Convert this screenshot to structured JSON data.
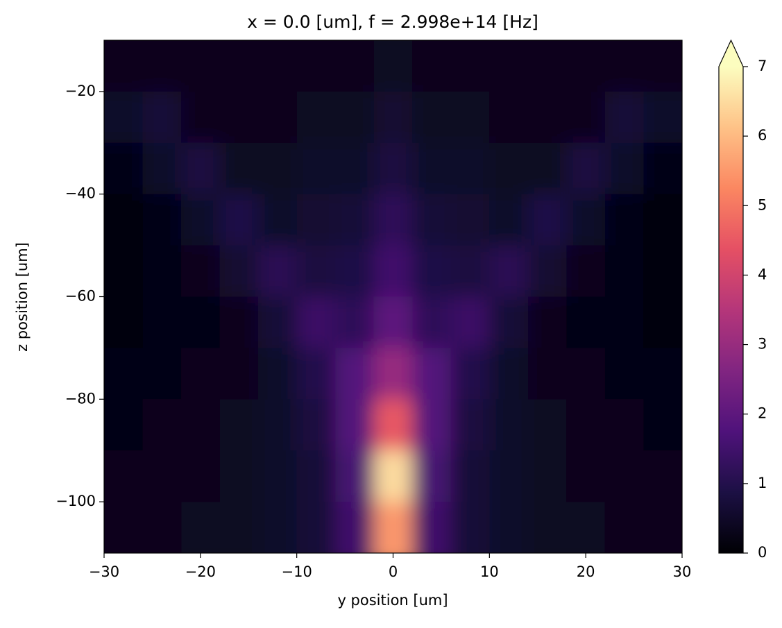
{
  "chart_data": {
    "type": "heatmap",
    "title": "x = 0.0 [um], f = 2.998e+14 [Hz]",
    "x_label": "y position [um]",
    "y_label": "z position [um]",
    "x": [
      -28,
      -24,
      -20,
      -16,
      -12,
      -8,
      -4,
      0,
      4,
      8,
      12,
      16,
      20,
      24,
      28
    ],
    "y": [
      -15,
      -25,
      -35,
      -45,
      -55,
      -65,
      -75,
      -85,
      -95,
      -105
    ],
    "values": [
      [
        0.3,
        0.3,
        0.3,
        0.3,
        0.3,
        0.3,
        0.3,
        0.4,
        0.3,
        0.3,
        0.3,
        0.3,
        0.3,
        0.3,
        0.3
      ],
      [
        0.5,
        0.7,
        0.3,
        0.3,
        0.3,
        0.4,
        0.4,
        0.6,
        0.4,
        0.4,
        0.3,
        0.3,
        0.3,
        0.7,
        0.5
      ],
      [
        0.2,
        0.5,
        0.8,
        0.4,
        0.4,
        0.5,
        0.5,
        0.8,
        0.5,
        0.5,
        0.4,
        0.4,
        0.8,
        0.5,
        0.2
      ],
      [
        0.1,
        0.2,
        0.5,
        0.9,
        0.5,
        0.6,
        0.7,
        1.2,
        0.7,
        0.6,
        0.5,
        0.9,
        0.5,
        0.2,
        0.1
      ],
      [
        0.1,
        0.2,
        0.3,
        0.6,
        1.1,
        0.8,
        0.9,
        1.5,
        0.9,
        0.8,
        1.1,
        0.6,
        0.3,
        0.2,
        0.1
      ],
      [
        0.1,
        0.2,
        0.2,
        0.3,
        0.7,
        1.4,
        1.2,
        2.0,
        1.2,
        1.4,
        0.7,
        0.3,
        0.2,
        0.2,
        0.1
      ],
      [
        0.2,
        0.2,
        0.3,
        0.3,
        0.5,
        1.0,
        1.8,
        3.0,
        1.8,
        1.0,
        0.5,
        0.3,
        0.3,
        0.2,
        0.2
      ],
      [
        0.2,
        0.3,
        0.3,
        0.4,
        0.5,
        0.8,
        1.8,
        4.5,
        1.8,
        0.8,
        0.5,
        0.4,
        0.3,
        0.3,
        0.2
      ],
      [
        0.3,
        0.3,
        0.3,
        0.4,
        0.5,
        0.7,
        1.6,
        6.5,
        1.6,
        0.7,
        0.5,
        0.4,
        0.3,
        0.3,
        0.3
      ],
      [
        0.3,
        0.3,
        0.4,
        0.4,
        0.5,
        0.7,
        1.5,
        5.5,
        1.5,
        0.7,
        0.5,
        0.4,
        0.4,
        0.3,
        0.3
      ]
    ],
    "xlim": [
      -30,
      30
    ],
    "ylim": [
      -110,
      -10
    ],
    "xticks": [
      {
        "value": -30,
        "label": "−30"
      },
      {
        "value": -20,
        "label": "−20"
      },
      {
        "value": -10,
        "label": "−10"
      },
      0,
      10,
      20,
      30
    ],
    "yticks": [
      {
        "value": -20,
        "label": "−20"
      },
      {
        "value": -40,
        "label": "−40"
      },
      {
        "value": -60,
        "label": "−60"
      },
      {
        "value": -80,
        "label": "−80"
      },
      {
        "value": -100,
        "label": "−100"
      }
    ],
    "clim": [
      0,
      7
    ],
    "cticks": [
      0,
      1,
      2,
      3,
      4,
      5,
      6,
      7
    ],
    "colorbar_extend": "max",
    "colormap": [
      "#000004",
      "#1c1044",
      "#4f127b",
      "#812581",
      "#b5367a",
      "#e55064",
      "#fb8761",
      "#fec287",
      "#fcfdbf"
    ]
  }
}
